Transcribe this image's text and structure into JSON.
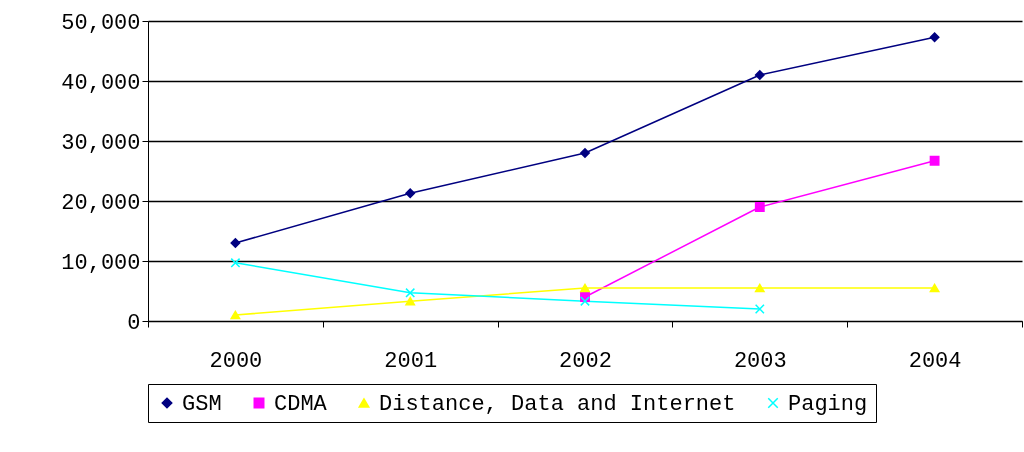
{
  "chart_data": {
    "type": "line",
    "categories": [
      "2000",
      "2001",
      "2002",
      "2003",
      "2004"
    ],
    "series": [
      {
        "name": "GSM",
        "color": "#000080",
        "marker": "diamond",
        "values": [
          13000,
          21300,
          28000,
          41000,
          47300
        ]
      },
      {
        "name": "CDMA",
        "color": "#ff00ff",
        "marker": "square",
        "values": [
          null,
          null,
          4000,
          19000,
          26700
        ]
      },
      {
        "name": "Distance, Data and Internet",
        "color": "#ffff00",
        "marker": "triangle",
        "values": [
          1000,
          3300,
          5500,
          5500,
          5500
        ]
      },
      {
        "name": "Paging",
        "color": "#00ffff",
        "marker": "cross",
        "values": [
          9700,
          4700,
          3300,
          2000,
          null
        ]
      }
    ],
    "ylim": [
      0,
      50000
    ],
    "yticks": [
      0,
      {
        "value": 10000,
        "label": "10,000"
      },
      {
        "value": 20000,
        "label": "20,000"
      },
      {
        "value": 30000,
        "label": "30,000"
      },
      {
        "value": 40000,
        "label": "40,000"
      },
      {
        "value": 50000,
        "label": "50,000"
      }
    ],
    "grid": "y",
    "legend": "bottom"
  }
}
